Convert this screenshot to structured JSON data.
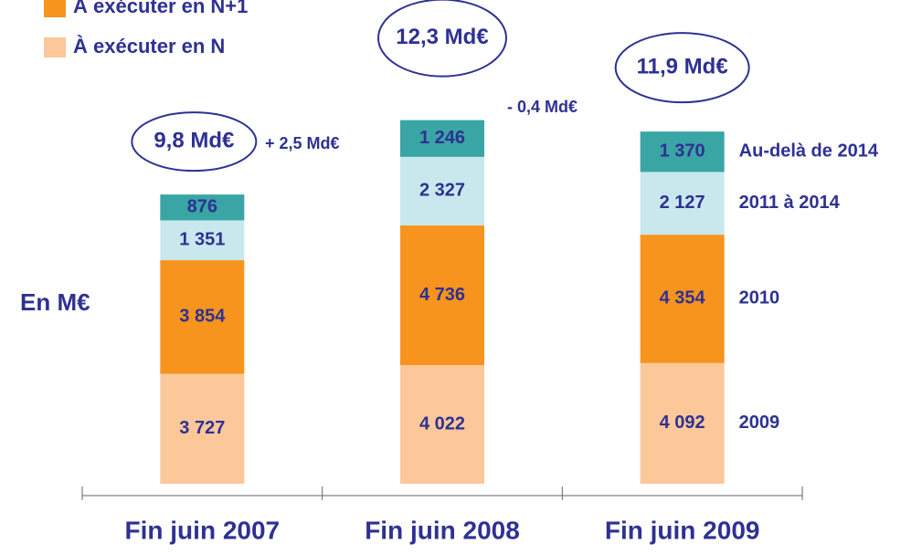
{
  "chart_data": {
    "type": "stacked_bar",
    "unit_label": "En M€",
    "categories": [
      "Fin juin 2007",
      "Fin juin 2008",
      "Fin juin 2009"
    ],
    "series": [
      {
        "name": "2009",
        "color": "#fcc89a",
        "values": [
          3727,
          4022,
          4092
        ],
        "value_labels": [
          "3 727",
          "4 022",
          "4 092"
        ]
      },
      {
        "name": "2010",
        "color": "#f7941d",
        "values": [
          3854,
          4736,
          4354
        ],
        "value_labels": [
          "3 854",
          "4 736",
          "4 354"
        ]
      },
      {
        "name": "2011 à 2014",
        "color": "#c8e8ee",
        "values": [
          1351,
          2327,
          2127
        ],
        "value_labels": [
          "1 351",
          "2 327",
          "2 127"
        ]
      },
      {
        "name": "Au-delà de 2014",
        "color": "#3aa5a5",
        "values": [
          876,
          1246,
          1370
        ],
        "value_labels": [
          "876",
          "1 246",
          "1 370"
        ]
      }
    ],
    "legend": [
      {
        "label": "À exécuter en N+1",
        "color": "#f7941d"
      },
      {
        "label": "À exécuter en N",
        "color": "#fcc89a"
      }
    ],
    "total_labels": [
      "9,8 Md€",
      "12,3 Md€",
      "11,9 Md€"
    ],
    "annotations": [
      "+ 2,5 Md€",
      "- 0,4 Md€"
    ],
    "ylim": [
      0,
      13000
    ]
  }
}
